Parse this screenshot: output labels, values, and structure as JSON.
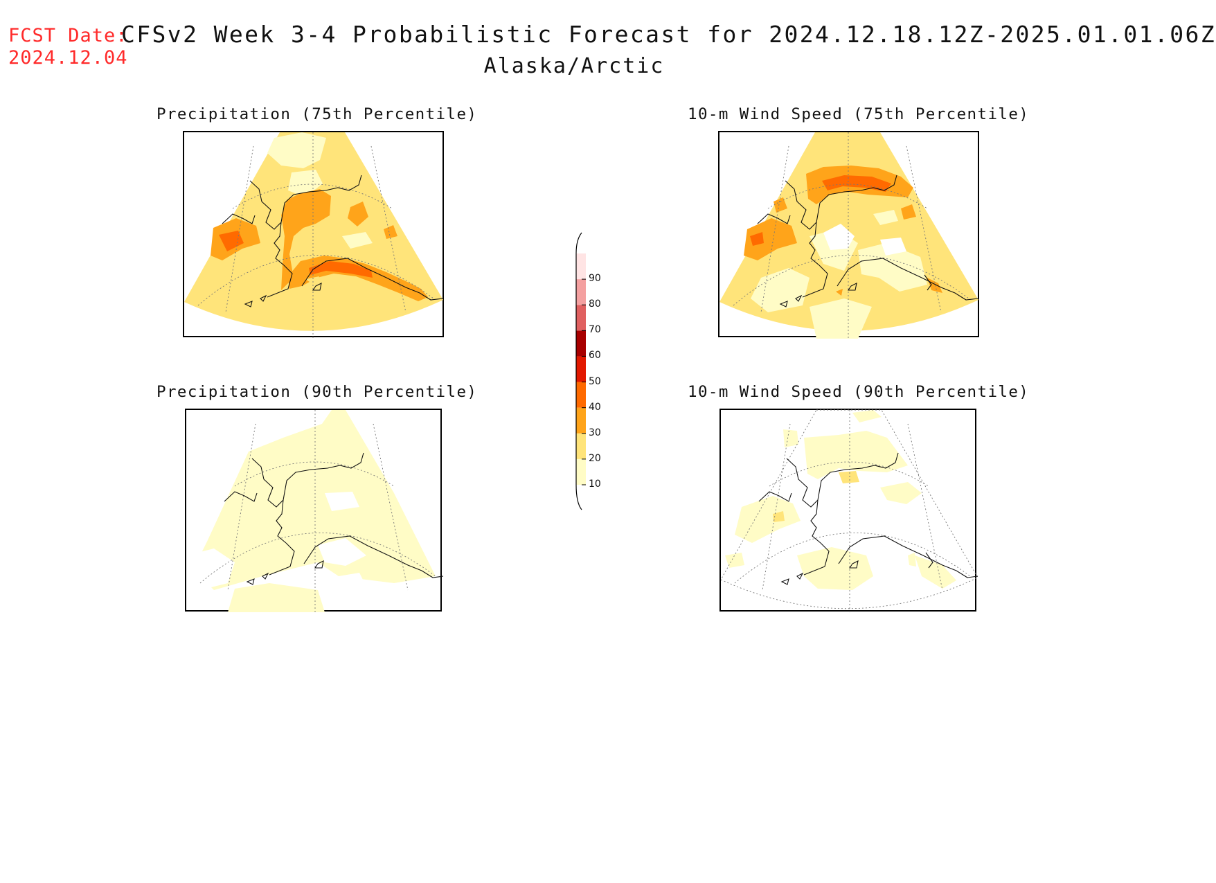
{
  "header": {
    "fcst_label": "FCST Date:",
    "fcst_date": "2024.12.04",
    "title": "CFSv2 Week 3-4 Probabilistic Forecast for 2024.12.18.12Z-2025.01.01.06Z",
    "subtitle": "Alaska/Arctic"
  },
  "panels": [
    {
      "id": "precip75",
      "title": "Precipitation (75th Percentile)"
    },
    {
      "id": "wind75",
      "title": "10-m Wind Speed (75th Percentile)"
    },
    {
      "id": "precip90",
      "title": "Precipitation (90th Percentile)"
    },
    {
      "id": "wind90",
      "title": "10-m Wind Speed (90th Percentile)"
    }
  ],
  "colorbar": {
    "levels": [
      "10",
      "20",
      "30",
      "40",
      "50",
      "60",
      "70",
      "80",
      "90"
    ],
    "colors": [
      "#fffcc6",
      "#ffe47a",
      "#ffa41a",
      "#ff6a00",
      "#e21800",
      "#a80000",
      "#e06060",
      "#f4a0a0",
      "#ffe4e4"
    ]
  },
  "colors": {
    "c10": "#fffcc6",
    "c20": "#ffe47a",
    "c30": "#ffa41a",
    "c40": "#ff6a00"
  }
}
